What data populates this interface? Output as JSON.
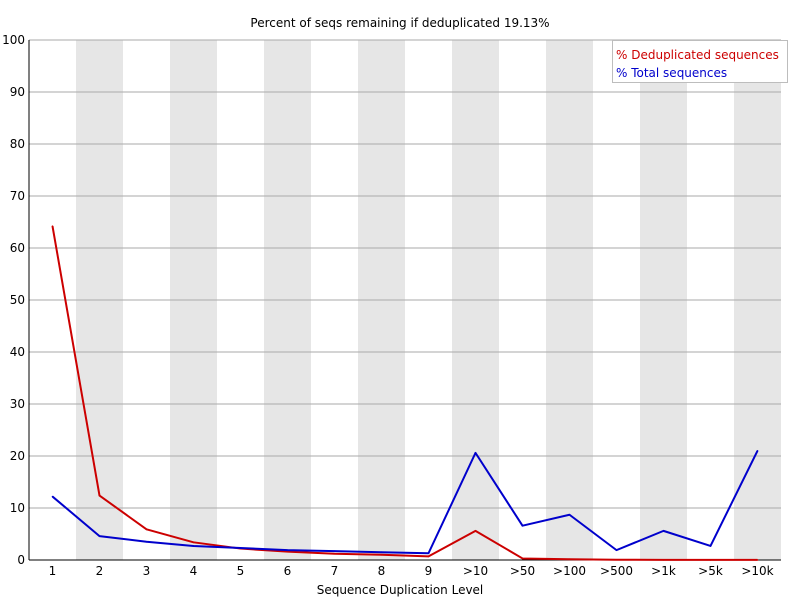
{
  "chart_data": {
    "type": "line",
    "title": "Percent of seqs remaining if deduplicated 19.13%",
    "xlabel": "Sequence Duplication Level",
    "ylabel": "",
    "ylim": [
      0,
      100
    ],
    "yticks": [
      "0",
      "10",
      "20",
      "30",
      "40",
      "50",
      "60",
      "70",
      "80",
      "90",
      "100"
    ],
    "categories": [
      "1",
      "2",
      "3",
      "4",
      "5",
      "6",
      "7",
      "8",
      "9",
      ">10",
      ">50",
      ">100",
      ">500",
      ">1k",
      ">5k",
      ">10k"
    ],
    "grid": true,
    "legend_position": "top-right",
    "series": [
      {
        "name": "% Deduplicated sequences",
        "color": "#cc0000",
        "values": [
          64.2,
          12.4,
          5.9,
          3.4,
          2.2,
          1.6,
          1.2,
          1.0,
          0.7,
          5.6,
          0.3,
          0.15,
          0.05,
          0.03,
          0.02,
          0.02
        ]
      },
      {
        "name": "% Total sequences",
        "color": "#0000cc",
        "values": [
          12.2,
          4.6,
          3.5,
          2.7,
          2.3,
          1.9,
          1.7,
          1.5,
          1.3,
          20.6,
          6.6,
          8.7,
          1.9,
          5.6,
          2.7,
          21.0
        ]
      }
    ]
  }
}
